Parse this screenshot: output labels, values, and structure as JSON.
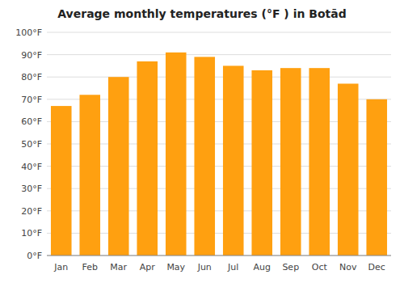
{
  "chart_data": {
    "type": "bar",
    "title": "Average monthly temperatures (°F ) in Botād",
    "categories": [
      "Jan",
      "Feb",
      "Mar",
      "Apr",
      "May",
      "Jun",
      "Jul",
      "Aug",
      "Sep",
      "Oct",
      "Nov",
      "Dec"
    ],
    "values": [
      67,
      72,
      80,
      87,
      91,
      89,
      85,
      83,
      84,
      84,
      77,
      70
    ],
    "color": "#FFA010",
    "ylim": [
      0,
      100
    ],
    "yticks": [
      {
        "value": 0,
        "label": "0°F"
      },
      {
        "value": 10,
        "label": "10°F"
      },
      {
        "value": 20,
        "label": "20°F"
      },
      {
        "value": 30,
        "label": "30°F"
      },
      {
        "value": 40,
        "label": "40°F"
      },
      {
        "value": 50,
        "label": "50°F"
      },
      {
        "value": 60,
        "label": "60°F"
      },
      {
        "value": 70,
        "label": "70°F"
      },
      {
        "value": 80,
        "label": "80°F"
      },
      {
        "value": 90,
        "label": "90°F"
      },
      {
        "value": 100,
        "label": "100°F"
      }
    ],
    "grid": true
  }
}
